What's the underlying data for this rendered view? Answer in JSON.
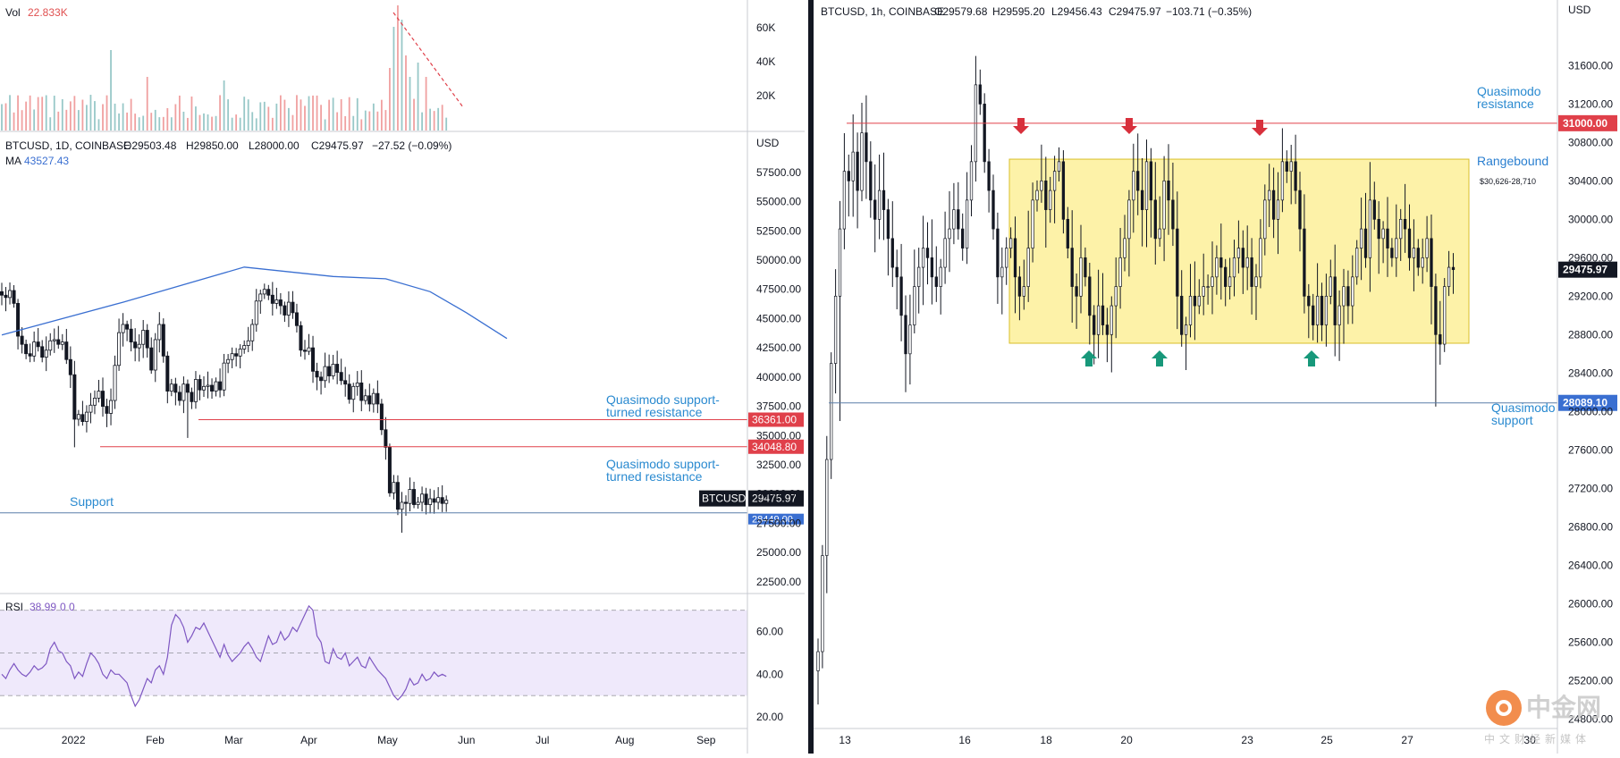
{
  "colors": {
    "up": "#131722",
    "down": "#131722",
    "ma": "#3a6fd1",
    "resistance": "#e0404a",
    "support": "#3a6fd1",
    "annotation": "#2a8ad0",
    "range_fill": "#fdf2a8",
    "range_stroke": "#d9bf2a",
    "arrow_down": "#d8303c",
    "arrow_up": "#17987a",
    "rsi_line": "#7e57c2",
    "rsi_band": "#efe9fb",
    "vol_up": "#98c8c8",
    "vol_down": "#f0a0a0"
  },
  "chart_data": [
    {
      "type": "bar",
      "panel": "volume",
      "title": "Vol",
      "value_label": "22.833K",
      "y_ticks": [
        "60K",
        "40K",
        "20K"
      ],
      "ylim": [
        0,
        70000
      ]
    },
    {
      "type": "candlestick",
      "panel": "daily",
      "header": {
        "symbol": "BTCUSD, 1D, COINBASE",
        "open": "O29503.48",
        "high": "H29850.00",
        "low": "L28000.00",
        "close": "C29475.97",
        "change": "−27.52 (−0.09%)"
      },
      "ma_label": "MA",
      "ma_value": "43527.43",
      "currency": "USD",
      "ylim": [
        21500,
        61000
      ],
      "y_ticks": [
        "57500.00",
        "55000.00",
        "52500.00",
        "50000.00",
        "47500.00",
        "45000.00",
        "42500.00",
        "40000.00",
        "37500.00",
        "35000.00",
        "32500.00",
        "30000.00",
        "27500.00",
        "25000.00",
        "22500.00"
      ],
      "x_ticks": [
        "2022",
        "Feb",
        "Mar",
        "Apr",
        "May",
        "Jun",
        "Jul",
        "Aug",
        "Sep"
      ],
      "levels": [
        {
          "price": 36361.0,
          "label": "36361.00",
          "kind": "resistance",
          "note1": "Quasimodo support-",
          "note2": "turned resistance"
        },
        {
          "price": 34048.8,
          "label": "34048.80",
          "kind": "resistance",
          "note1": "Quasimodo support-",
          "note2": "turned resistance"
        },
        {
          "price": 28400.0,
          "label": "Support",
          "kind": "support",
          "tag": "28449.00"
        }
      ],
      "last_price": {
        "symbol": "BTCUSD",
        "value": "29475.97"
      },
      "closes": [
        47000,
        46800,
        47400,
        46300,
        43500,
        42800,
        42000,
        41800,
        43000,
        42600,
        41700,
        42300,
        43100,
        43200,
        42800,
        43000,
        41500,
        40200,
        36400,
        36800,
        36200,
        37000,
        37600,
        38200,
        38800,
        37500,
        36900,
        38000,
        41000,
        43800,
        44500,
        44100,
        43000,
        42500,
        42800,
        44000,
        42500,
        40600,
        43200,
        44500,
        41800,
        38800,
        39400,
        38700,
        38000,
        39400,
        38700,
        37900,
        39800,
        38900,
        39200,
        39300,
        38800,
        39600,
        38900,
        41200,
        41500,
        42000,
        41800,
        42400,
        42700,
        43100,
        44500,
        46500,
        47100,
        47500,
        47000,
        46300,
        46600,
        46100,
        45300,
        46400,
        45500,
        44400,
        42300,
        42200,
        42500,
        40500,
        40000,
        39700,
        40900,
        40100,
        41100,
        40400,
        39700,
        39400,
        38100,
        39200,
        39500,
        38000,
        38400,
        37700,
        38600,
        37700,
        35500,
        34000,
        30100,
        31000,
        28700,
        29300,
        29200,
        30400,
        29100,
        29300,
        30000,
        29100,
        29600,
        29300,
        29700,
        29200,
        29476
      ],
      "ma_points": [
        [
          0,
          43600
        ],
        [
          30,
          46400
        ],
        [
          60,
          49400
        ],
        [
          82,
          48600
        ],
        [
          95,
          48400
        ],
        [
          106,
          47300
        ],
        [
          115,
          45500
        ],
        [
          125,
          43300
        ]
      ],
      "rsi": {
        "label": "RSI",
        "value": "38.99",
        "extra": "0  0",
        "y_ticks": [
          "60.00",
          "40.00",
          "20.00"
        ],
        "ylim": [
          15,
          77
        ],
        "upper": 70,
        "mid": 50,
        "lower": 30,
        "values": [
          40,
          38,
          42,
          45,
          42,
          40,
          39,
          41,
          44,
          42,
          43,
          45,
          52,
          55,
          51,
          50,
          46,
          44,
          38,
          41,
          39,
          45,
          50,
          48,
          45,
          40,
          38,
          42,
          40,
          40,
          38,
          36,
          30,
          25,
          28,
          33,
          38,
          36,
          42,
          44,
          40,
          48,
          63,
          68,
          66,
          62,
          55,
          58,
          62,
          61,
          64,
          60,
          56,
          52,
          48,
          54,
          49,
          46,
          48,
          50,
          53,
          55,
          52,
          48,
          46,
          52,
          58,
          54,
          55,
          60,
          56,
          58,
          62,
          60,
          64,
          68,
          72,
          70,
          58,
          55,
          46,
          45,
          52,
          48,
          47,
          50,
          44,
          46,
          48,
          44,
          43,
          48,
          45,
          42,
          40,
          38,
          34,
          30,
          28,
          30,
          33,
          38,
          35,
          36,
          40,
          37,
          38,
          41,
          39,
          40,
          38.99
        ]
      }
    },
    {
      "type": "candlestick",
      "panel": "hourly",
      "header": {
        "symbol": "BTCUSD, 1h, COINBASE",
        "open": "O29579.68",
        "high": "H29595.20",
        "low": "L29456.43",
        "close": "C29475.97",
        "change": "−103.71 (−0.35%)"
      },
      "currency": "USD",
      "ylim": [
        24700,
        32050
      ],
      "y_ticks": [
        "31600.00",
        "31200.00",
        "30800.00",
        "30400.00",
        "30000.00",
        "29600.00",
        "29200.00",
        "28800.00",
        "28400.00",
        "28000.00",
        "27600.00",
        "27200.00",
        "26800.00",
        "26400.00",
        "26000.00",
        "25600.00",
        "25200.00",
        "24800.00"
      ],
      "x_ticks": [
        "13",
        "16",
        "18",
        "20",
        "23",
        "25",
        "27",
        "30"
      ],
      "levels": [
        {
          "price": 31000.0,
          "label": "31000.00",
          "kind": "resistance",
          "note1": "Quasimodo",
          "note2": "resistance"
        },
        {
          "price": 28089.1,
          "label": "28089.10",
          "kind": "support",
          "note1": "Quasimodo",
          "note2": "support"
        }
      ],
      "range": {
        "top": 30626,
        "bottom": 28710,
        "label": "Rangebound",
        "sublabel": "$30,626-28,710"
      },
      "last_price": {
        "value": "29475.97"
      },
      "closes": [
        25500,
        26500,
        27500,
        28500,
        29200,
        29900,
        30500,
        30400,
        30700,
        30300,
        30900,
        30600,
        30200,
        30000,
        30300,
        30100,
        29800,
        29500,
        29400,
        29000,
        28600,
        28900,
        29300,
        29500,
        29700,
        29600,
        29400,
        29300,
        29500,
        29800,
        29900,
        30100,
        29900,
        29700,
        30200,
        30600,
        31400,
        31200,
        30600,
        30300,
        29900,
        29400,
        29500,
        29700,
        29800,
        29400,
        29200,
        29300,
        29700,
        30200,
        30300,
        30400,
        30100,
        30300,
        30500,
        30600,
        30000,
        29700,
        29300,
        29200,
        29600,
        29400,
        29000,
        28800,
        29100,
        28900,
        28800,
        29100,
        29300,
        29600,
        29800,
        30200,
        30500,
        30300,
        30100,
        30600,
        30200,
        29800,
        29900,
        30400,
        30200,
        29900,
        29200,
        28800,
        28900,
        29200,
        29100,
        29200,
        29300,
        29300,
        29400,
        29600,
        29500,
        29300,
        29400,
        29600,
        29700,
        29500,
        29600,
        29300,
        29400,
        29800,
        30200,
        30300,
        30000,
        30200,
        30600,
        30500,
        30600,
        30300,
        29900,
        29200,
        29100,
        28900,
        29200,
        28900,
        29200,
        29400,
        28900,
        29100,
        29300,
        29100,
        29400,
        29700,
        29900,
        29600,
        30200,
        30000,
        29800,
        29900,
        29700,
        29600,
        29800,
        30000,
        29900,
        29600,
        29700,
        29500,
        29600,
        29800,
        29300,
        28800,
        28700,
        29300,
        29500,
        29476
      ],
      "arrows_down": [
        19,
        73,
        108
      ],
      "arrows_up": [
        64,
        79,
        117
      ]
    }
  ],
  "watermark": {
    "brand": "中金网",
    "sub": "中文财经新媒体"
  }
}
